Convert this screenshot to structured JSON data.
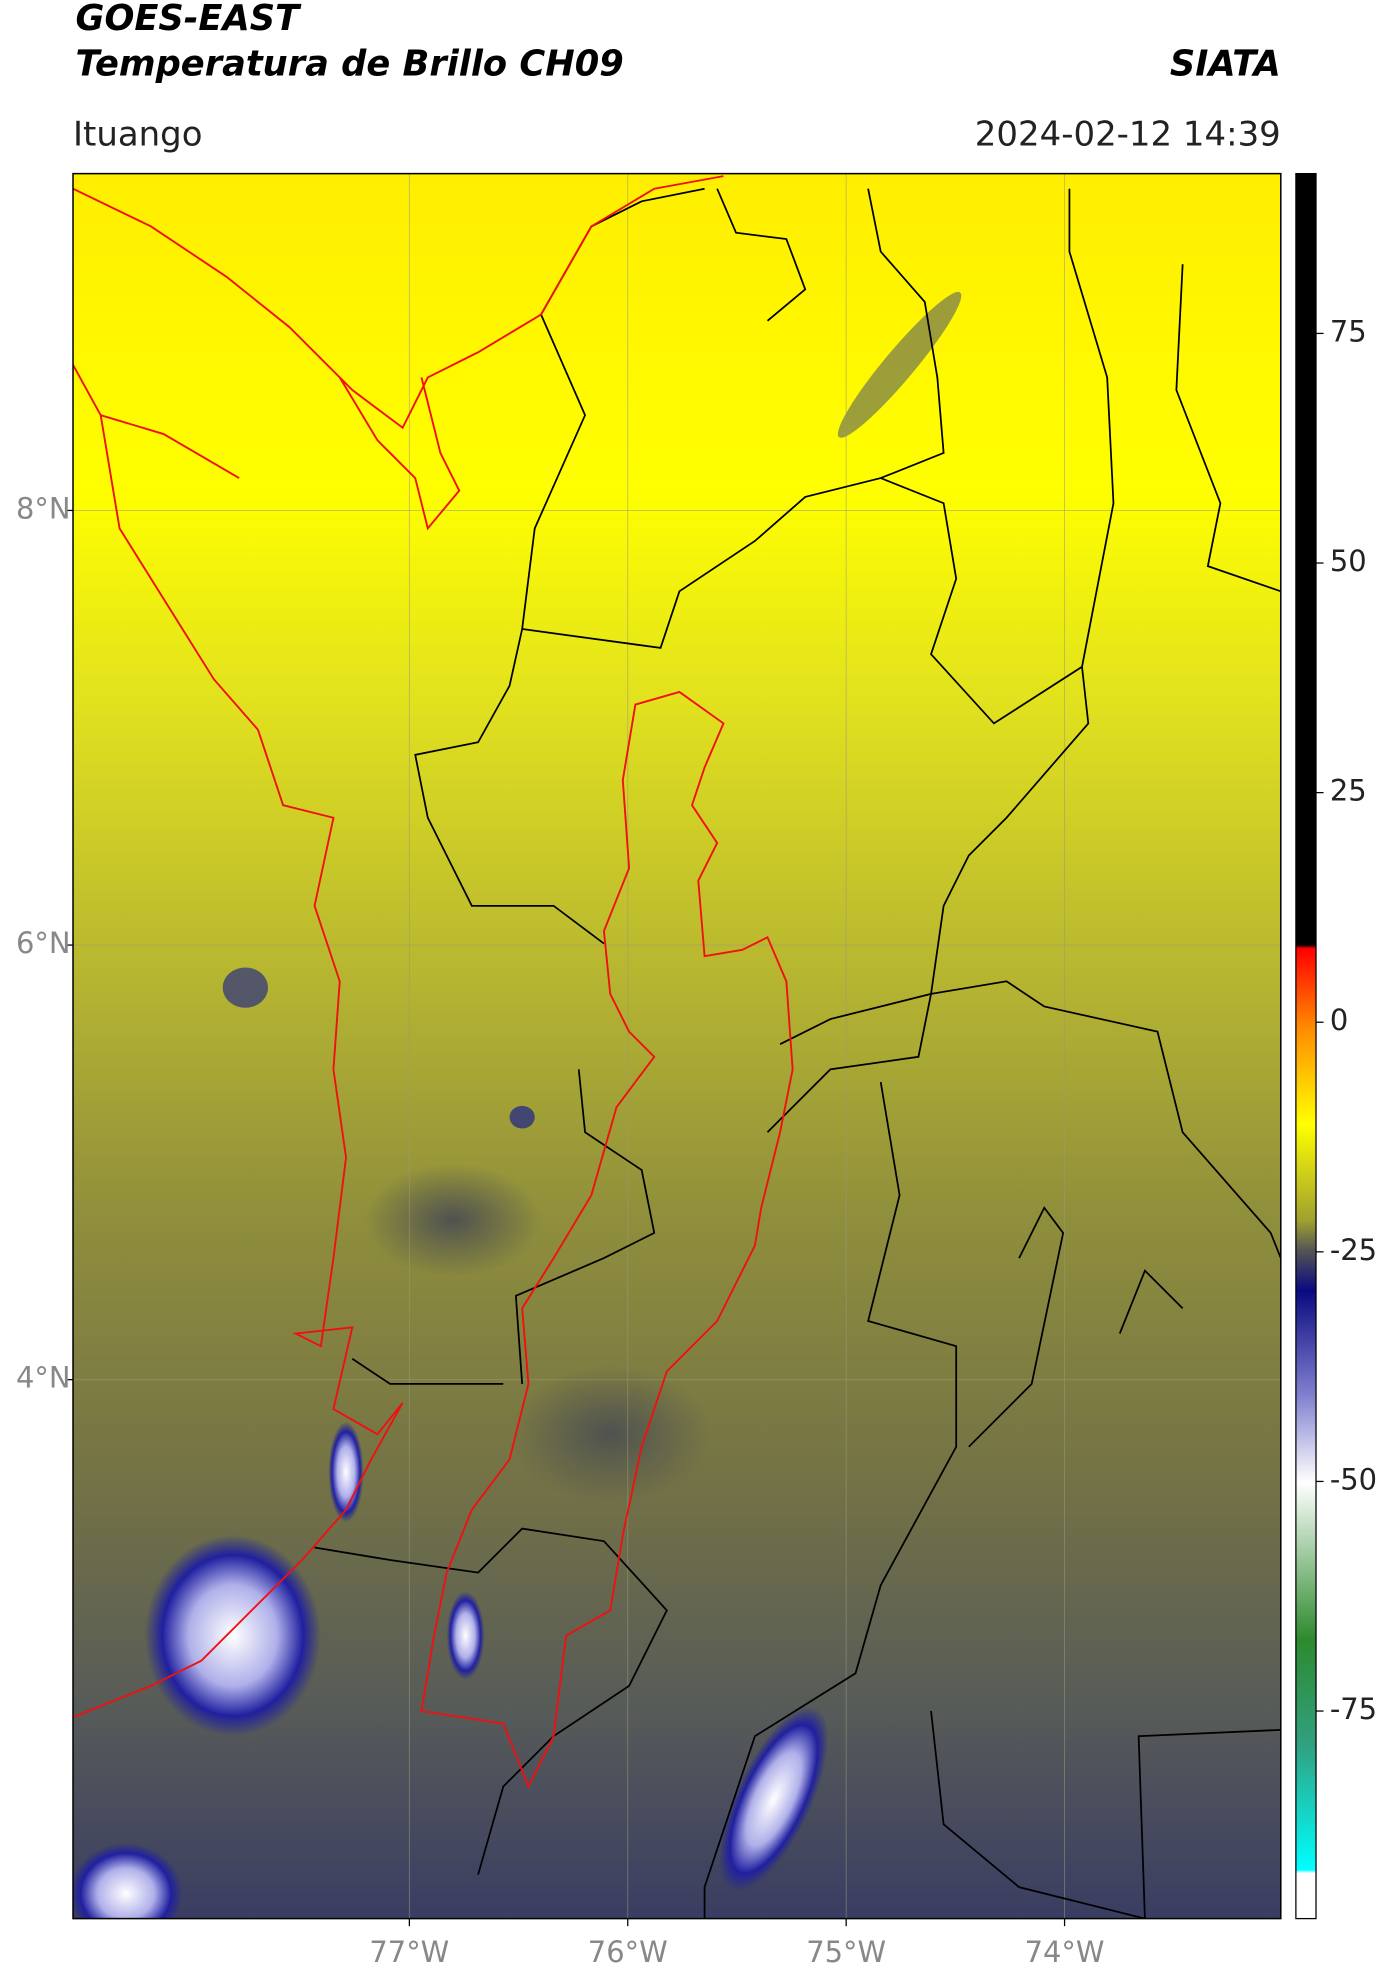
{
  "header": {
    "satellite": "GOES-EAST",
    "product": "Temperatura de Brillo CH09",
    "organization": "SIATA",
    "region": "Ituango",
    "datetime": "2024-02-12 14:39"
  },
  "map": {
    "xlim": [
      -78.54,
      -73.01
    ],
    "ylim": [
      1.52,
      9.55
    ],
    "xticks": [
      {
        "value": -77,
        "label": "77°W"
      },
      {
        "value": -76,
        "label": "76°W"
      },
      {
        "value": -75,
        "label": "75°W"
      },
      {
        "value": -74,
        "label": "74°W"
      }
    ],
    "yticks": [
      {
        "value": 8,
        "label": "8°N"
      },
      {
        "value": 6,
        "label": "6°N"
      },
      {
        "value": 4,
        "label": "4°N"
      }
    ],
    "grid": true
  },
  "colorbar": {
    "ylim": [
      -97.6,
      92.4
    ],
    "yticks": [
      75,
      50,
      25,
      0,
      -25,
      -50,
      -75
    ]
  }
}
